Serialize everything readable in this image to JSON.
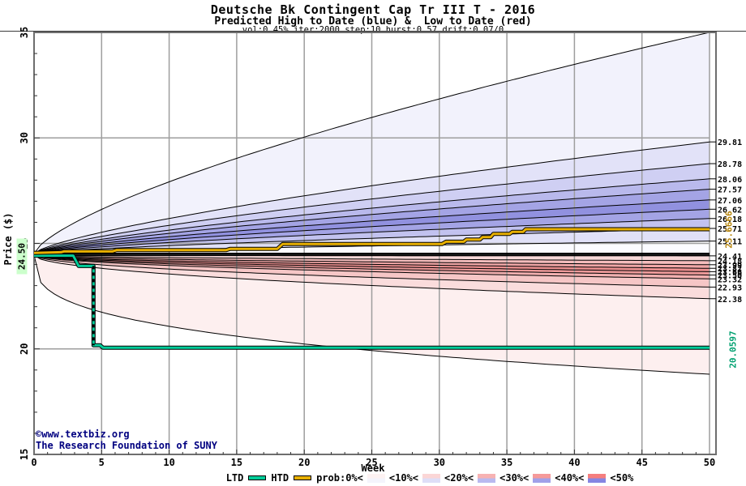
{
  "chart_data": {
    "type": "area",
    "title": "Deutsche Bk Contingent Cap Tr III T - 2016",
    "subtitle": "Predicted High to Date (blue) &  Low to Date (red)",
    "params": "vol:0.45% iter:2000 step:10 hurst:0.57 drift:0.07/0",
    "x_axis": {
      "label": "Week",
      "min": 0,
      "max": 50,
      "ticks": [
        "0",
        "5",
        "10",
        "15",
        "20",
        "25",
        "30",
        "35",
        "40",
        "45",
        "50"
      ]
    },
    "y_axis": {
      "label": "Price ($)",
      "min": 15,
      "max": 35,
      "ticks": [
        "15",
        "20",
        "25",
        "30",
        "35"
      ]
    },
    "start_price": 24.5,
    "start_price_label": "24.50",
    "upper_fan": {
      "description": "predicted High-to-Date probability bands (blue), decile curve end values at week 50",
      "start": 24.52,
      "outer_end": 35.0,
      "alpha_outer": 0.7,
      "alpha_inner": 0.72,
      "curves": [
        {
          "end": 29.81,
          "label": "29.81"
        },
        {
          "end": 28.78,
          "label": "28.78"
        },
        {
          "end": 28.06,
          "label": "28.06"
        },
        {
          "end": 27.57,
          "label": "27.57"
        },
        {
          "end": 27.06,
          "label": "27.06"
        },
        {
          "end": 26.62,
          "label": "26.62"
        },
        {
          "end": 26.18,
          "label": "26.18"
        },
        {
          "end": 25.71,
          "label": "25.71"
        },
        {
          "end": 25.11,
          "label": "25.11"
        }
      ],
      "band_colors": [
        "#f2f2fc",
        "#e2e2f8",
        "#cfcff3",
        "#b9b9ec",
        "#a4a4e5",
        "#9191df",
        "#a4a4e5",
        "#c2c2ef",
        "#e0e0f7"
      ],
      "center_color": "#fbfbff"
    },
    "lower_fan": {
      "description": "predicted Low-to-Date probability bands (red), decile curve end values at week 50",
      "start": 24.44,
      "outer_end": 18.8,
      "alpha_outer": 0.32,
      "alpha_inner": 0.52,
      "curves": [
        {
          "end": 24.41,
          "label": "24.41"
        },
        {
          "end": 24.18,
          "label": "24.18"
        },
        {
          "end": 23.99,
          "label": "23.99"
        },
        {
          "end": 23.82,
          "label": "23.82"
        },
        {
          "end": 23.66,
          "label": "23.66"
        },
        {
          "end": 23.5,
          "label": "23.50"
        },
        {
          "end": 23.32,
          "label": "23.32"
        },
        {
          "end": 22.93,
          "label": "22.93"
        },
        {
          "end": 22.38,
          "label": "22.38"
        }
      ],
      "band_colors": [
        "#f8d8d8",
        "#f4bcbc",
        "#f0a6a6",
        "#ec9090",
        "#ee9a9a",
        "#f2b0b0",
        "#f6c6c6",
        "#fadcdc",
        "#fdefef"
      ],
      "center_color": "#fff8f8"
    },
    "htd": {
      "label": "HTD",
      "color": "#e8b000",
      "final_value_label": "25.6666",
      "final_label_color": "#b8860b",
      "points": [
        [
          0,
          24.55
        ],
        [
          2,
          24.58
        ],
        [
          2.2,
          24.62
        ],
        [
          5.8,
          24.62
        ],
        [
          6.1,
          24.68
        ],
        [
          14.2,
          24.68
        ],
        [
          14.5,
          24.74
        ],
        [
          18.0,
          24.74
        ],
        [
          18.4,
          24.97
        ],
        [
          30.2,
          24.97
        ],
        [
          30.5,
          25.08
        ],
        [
          31.8,
          25.08
        ],
        [
          32.0,
          25.18
        ],
        [
          33.0,
          25.18
        ],
        [
          33.2,
          25.3
        ],
        [
          33.8,
          25.3
        ],
        [
          34.0,
          25.45
        ],
        [
          35.2,
          25.45
        ],
        [
          35.4,
          25.55
        ],
        [
          36.2,
          25.55
        ],
        [
          36.4,
          25.67
        ],
        [
          50,
          25.67
        ]
      ]
    },
    "ltd": {
      "label": "LTD",
      "color": "#00cc99",
      "final_value_label": "20.0597",
      "final_label_color": "#00a070",
      "points": [
        [
          0,
          24.42
        ],
        [
          2.9,
          24.42
        ],
        [
          3.3,
          23.93
        ],
        [
          4.4,
          23.93
        ],
        [
          4.4,
          20.17
        ],
        [
          4.9,
          20.17
        ],
        [
          5.1,
          20.06
        ],
        [
          50,
          20.06
        ]
      ],
      "drop_segment": [
        [
          4.4,
          23.93
        ],
        [
          4.4,
          20.17
        ]
      ]
    },
    "legend": {
      "prob_label": "prob:0%<",
      "labels": [
        "<10%<",
        "<20%<",
        "<30%<",
        "<40%<",
        "<50%"
      ],
      "band_swatches": [
        {
          "top": "#fdf2f2",
          "bottom": "#f4f4fc"
        },
        {
          "top": "#fbd6d6",
          "bottom": "#dedef7"
        },
        {
          "top": "#f7b2b2",
          "bottom": "#b9b9ef"
        },
        {
          "top": "#f59a9a",
          "bottom": "#a0a0e9"
        },
        {
          "top": "#f57e7e",
          "bottom": "#8585e2"
        }
      ]
    },
    "colors": {
      "grid": "#9e9e9e",
      "frame": "#6e6e6e",
      "curve": "#000000",
      "background": "#ffffff"
    },
    "footer": {
      "line1": "©www.textbiz.org",
      "line2": "The Research Foundation of SUNY",
      "color": "#000080"
    }
  }
}
